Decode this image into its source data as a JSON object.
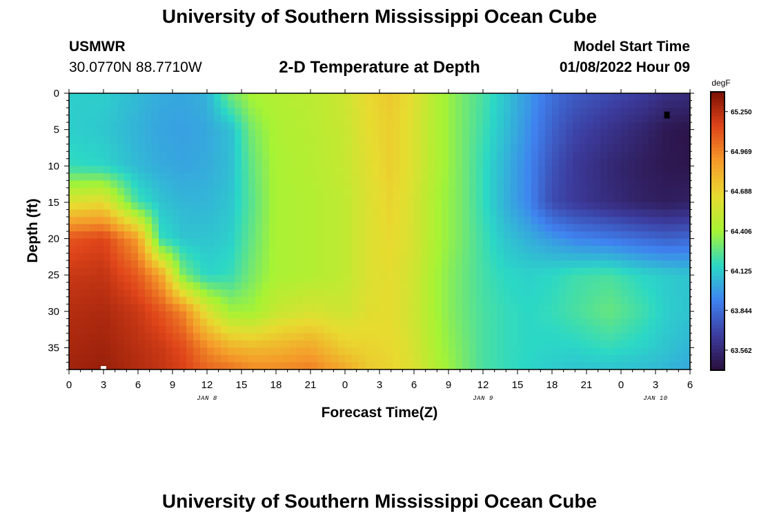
{
  "header": {
    "title": "University of Southern Mississippi Ocean Cube",
    "station": "USMWR",
    "coords": "30.0770N  88.7710W",
    "plot_title": "2-D Temperature at Depth",
    "model_label": "Model Start Time",
    "model_time": "01/08/2022 Hour 09"
  },
  "footer": {
    "title": "University of Southern Mississippi Ocean Cube"
  },
  "chart_data": {
    "type": "heatmap",
    "title": "2-D Temperature at Depth",
    "xlabel": "Forecast Time(Z)",
    "ylabel": "Depth (ft)",
    "x_hours": [
      0,
      54
    ],
    "ylim": [
      0,
      38
    ],
    "x_tick_labels": [
      "0",
      "3",
      "6",
      "9",
      "12",
      "15",
      "18",
      "21",
      "0",
      "3",
      "6",
      "9",
      "12",
      "15",
      "18",
      "21",
      "0",
      "3",
      "6"
    ],
    "date_labels": [
      {
        "label": "JAN 8",
        "hour": 12
      },
      {
        "label": "JAN 9",
        "hour": 36
      },
      {
        "label": "JAN 10",
        "hour": 51
      }
    ],
    "y_ticks": [
      0,
      5,
      10,
      15,
      20,
      25,
      30,
      35
    ],
    "colorbar": {
      "unit": "degF",
      "ticks": [
        "65.250",
        "64.969",
        "64.688",
        "64.406",
        "64.125",
        "63.844",
        "63.562"
      ],
      "range": [
        63.42,
        65.39
      ],
      "colors": [
        "#2a0f3e",
        "#3c3c9e",
        "#3f82f0",
        "#2bd8c6",
        "#a6f334",
        "#e8db30",
        "#f59b2a",
        "#e0451a",
        "#7c1004"
      ]
    },
    "max_marker": {
      "hour": 3,
      "depth": 38
    },
    "min_marker": {
      "hour": 52,
      "depth": 3
    },
    "columns": [
      {
        "h": 0,
        "v": [
          64.13,
          64.13,
          64.18,
          64.6,
          65.1,
          65.2,
          65.25,
          65.28,
          65.3
        ]
      },
      {
        "h": 3,
        "v": [
          64.13,
          64.11,
          64.15,
          64.65,
          65.15,
          65.22,
          65.27,
          65.3,
          65.32
        ]
      },
      {
        "h": 6,
        "v": [
          64.07,
          64.05,
          64.07,
          64.2,
          64.88,
          65.08,
          65.2,
          65.24,
          65.26
        ]
      },
      {
        "h": 8,
        "v": [
          64.03,
          64.01,
          64.03,
          64.1,
          64.18,
          64.86,
          65.1,
          65.2,
          65.22
        ]
      },
      {
        "h": 10,
        "v": [
          64.02,
          64.0,
          64.01,
          64.06,
          64.1,
          64.3,
          64.95,
          65.12,
          65.16
        ]
      },
      {
        "h": 12,
        "v": [
          64.05,
          64.02,
          64.03,
          64.06,
          64.1,
          64.15,
          64.6,
          64.95,
          65.05
        ]
      },
      {
        "h": 14,
        "v": [
          64.3,
          64.08,
          64.08,
          64.1,
          64.13,
          64.18,
          64.4,
          64.82,
          65.02
        ]
      },
      {
        "h": 16,
        "v": [
          64.42,
          64.32,
          64.28,
          64.26,
          64.28,
          64.32,
          64.4,
          64.78,
          64.95
        ]
      },
      {
        "h": 18,
        "v": [
          64.45,
          64.43,
          64.42,
          64.42,
          64.42,
          64.42,
          64.52,
          64.8,
          64.95
        ]
      },
      {
        "h": 21,
        "v": [
          64.48,
          64.47,
          64.46,
          64.45,
          64.45,
          64.45,
          64.58,
          64.85,
          64.98
        ]
      },
      {
        "h": 24,
        "v": [
          64.55,
          64.53,
          64.52,
          64.5,
          64.5,
          64.5,
          64.55,
          64.7,
          64.85
        ]
      },
      {
        "h": 26,
        "v": [
          64.66,
          64.64,
          64.62,
          64.6,
          64.6,
          64.6,
          64.62,
          64.68,
          64.72
        ]
      },
      {
        "h": 28,
        "v": [
          64.72,
          64.7,
          64.7,
          64.68,
          64.66,
          64.64,
          64.64,
          64.66,
          64.68
        ]
      },
      {
        "h": 30,
        "v": [
          64.62,
          64.6,
          64.6,
          64.58,
          64.58,
          64.56,
          64.55,
          64.58,
          64.6
        ]
      },
      {
        "h": 32,
        "v": [
          64.44,
          64.44,
          64.44,
          64.42,
          64.42,
          64.4,
          64.4,
          64.42,
          64.44
        ]
      },
      {
        "h": 34,
        "v": [
          64.32,
          64.32,
          64.32,
          64.32,
          64.32,
          64.3,
          64.3,
          64.32,
          64.33
        ]
      },
      {
        "h": 36,
        "v": [
          64.22,
          64.2,
          64.18,
          64.18,
          64.2,
          64.21,
          64.22,
          64.22,
          64.22
        ]
      },
      {
        "h": 38,
        "v": [
          64.1,
          64.08,
          64.05,
          64.04,
          64.1,
          64.16,
          64.18,
          64.18,
          64.18
        ]
      },
      {
        "h": 40,
        "v": [
          63.98,
          63.95,
          63.92,
          63.92,
          64.04,
          64.14,
          64.16,
          64.16,
          64.15
        ]
      },
      {
        "h": 42,
        "v": [
          63.85,
          63.8,
          63.75,
          63.72,
          63.98,
          64.16,
          64.18,
          64.15,
          64.12
        ]
      },
      {
        "h": 44,
        "v": [
          63.78,
          63.7,
          63.65,
          63.65,
          63.92,
          64.2,
          64.22,
          64.15,
          64.1
        ]
      },
      {
        "h": 47,
        "v": [
          63.72,
          63.62,
          63.56,
          63.58,
          63.88,
          64.22,
          64.28,
          64.18,
          64.1
        ]
      },
      {
        "h": 50,
        "v": [
          63.66,
          63.54,
          63.5,
          63.52,
          63.83,
          64.15,
          64.2,
          64.14,
          64.08
        ]
      },
      {
        "h": 52,
        "v": [
          63.6,
          63.47,
          63.47,
          63.5,
          63.8,
          64.12,
          64.13,
          64.1,
          64.06
        ]
      },
      {
        "h": 54,
        "v": [
          63.58,
          63.45,
          63.46,
          63.52,
          63.82,
          64.1,
          64.1,
          64.06,
          64.02
        ]
      }
    ],
    "depth_nodes": [
      0,
      5,
      10,
      15,
      20,
      25,
      30,
      35,
      38
    ]
  }
}
